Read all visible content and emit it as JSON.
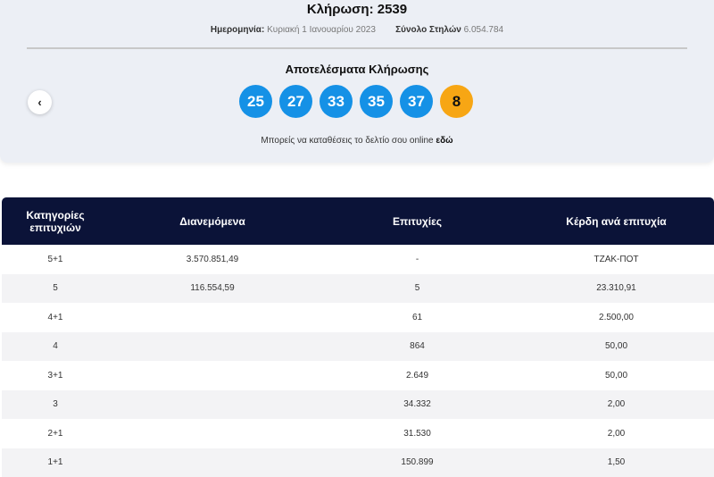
{
  "header": {
    "title": "Κλήρωση: 2539",
    "date_label": "Ημερομηνία:",
    "date_value": "Κυριακή 1 Ιανουαρίου 2023",
    "columns_label": "Σύνολο Στηλών",
    "columns_value": "6.054.784"
  },
  "results": {
    "title": "Αποτελέσματα Κλήρωσης",
    "numbers": [
      "25",
      "27",
      "33",
      "35",
      "37"
    ],
    "joker": "8",
    "online_text": "Μπορείς να καταθέσεις το δελτίο σου online",
    "online_link": "εδώ"
  },
  "table": {
    "headers": [
      "Κατηγορίες επιτυχιών",
      "Διανεμόμενα",
      "Επιτυχίες",
      "Κέρδη ανά επιτυχία"
    ],
    "rows": [
      [
        "5+1",
        "3.570.851,49",
        "-",
        "ΤΖΑΚ-ΠΟΤ"
      ],
      [
        "5",
        "116.554,59",
        "5",
        "23.310,91"
      ],
      [
        "4+1",
        "",
        "61",
        "2.500,00"
      ],
      [
        "4",
        "",
        "864",
        "50,00"
      ],
      [
        "3+1",
        "",
        "2.649",
        "50,00"
      ],
      [
        "3",
        "",
        "34.332",
        "2,00"
      ],
      [
        "2+1",
        "",
        "31.530",
        "2,00"
      ],
      [
        "1+1",
        "",
        "150.899",
        "1,50"
      ]
    ]
  }
}
